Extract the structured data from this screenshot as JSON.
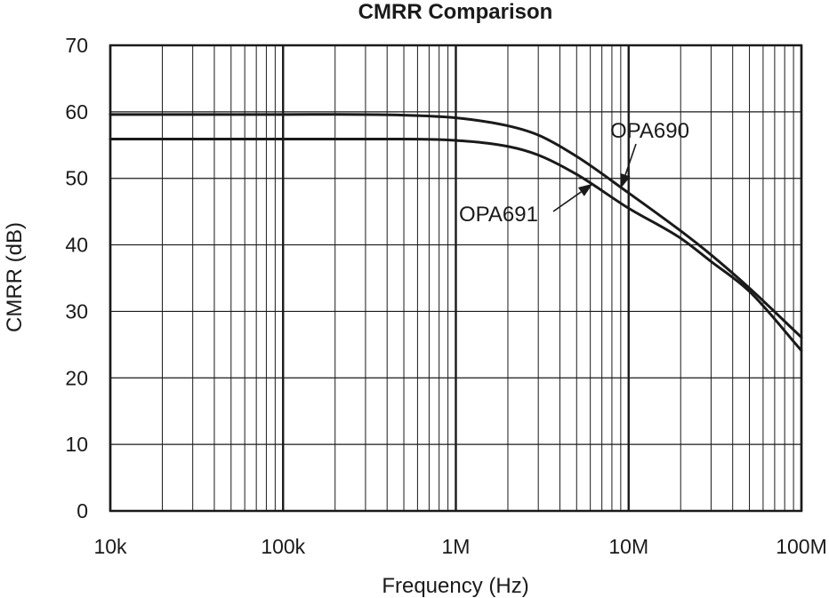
{
  "chart_data": {
    "type": "line",
    "title": "CMRR Comparison",
    "xlabel": "Frequency (Hz)",
    "ylabel": "CMRR (dB)",
    "x_scale": "log",
    "xlim": [
      10000,
      100000000
    ],
    "ylim": [
      0,
      70
    ],
    "x_ticks": [
      {
        "value": 10000,
        "label": "10k"
      },
      {
        "value": 100000,
        "label": "100k"
      },
      {
        "value": 1000000,
        "label": "1M"
      },
      {
        "value": 10000000,
        "label": "10M"
      },
      {
        "value": 100000000,
        "label": "100M"
      }
    ],
    "y_ticks": [
      {
        "value": 0,
        "label": "0"
      },
      {
        "value": 10,
        "label": "10"
      },
      {
        "value": 20,
        "label": "20"
      },
      {
        "value": 30,
        "label": "30"
      },
      {
        "value": 40,
        "label": "40"
      },
      {
        "value": 50,
        "label": "50"
      },
      {
        "value": 60,
        "label": "60"
      },
      {
        "value": 70,
        "label": "70"
      }
    ],
    "grid": true,
    "series": [
      {
        "name": "OPA690",
        "x": [
          10000,
          100000,
          500000,
          1000000,
          2000000,
          3000000,
          5000000,
          10000000,
          20000000,
          30000000,
          50000000,
          100000000
        ],
        "y": [
          59.6,
          59.6,
          59.5,
          59.1,
          57.9,
          56.5,
          53.3,
          47.8,
          42.1,
          38.5,
          33.5,
          26.1
        ]
      },
      {
        "name": "OPA691",
        "x": [
          10000,
          100000,
          500000,
          1000000,
          2000000,
          3000000,
          5000000,
          10000000,
          20000000,
          30000000,
          50000000,
          100000000
        ],
        "y": [
          55.9,
          55.9,
          55.9,
          55.7,
          54.8,
          53.5,
          50.6,
          45.5,
          41.0,
          37.5,
          33.0,
          24.1
        ]
      }
    ],
    "annotations": [
      {
        "text": "OPA690",
        "series": "OPA690",
        "arrow_to": {
          "x": 9000000,
          "y": 48.5
        }
      },
      {
        "text": "OPA691",
        "series": "OPA691",
        "arrow_to": {
          "x": 6200000,
          "y": 49.2
        }
      }
    ],
    "colors": {
      "line": "#1a1a1a",
      "grid": "#1a1a1a",
      "background": "#ffffff"
    }
  }
}
